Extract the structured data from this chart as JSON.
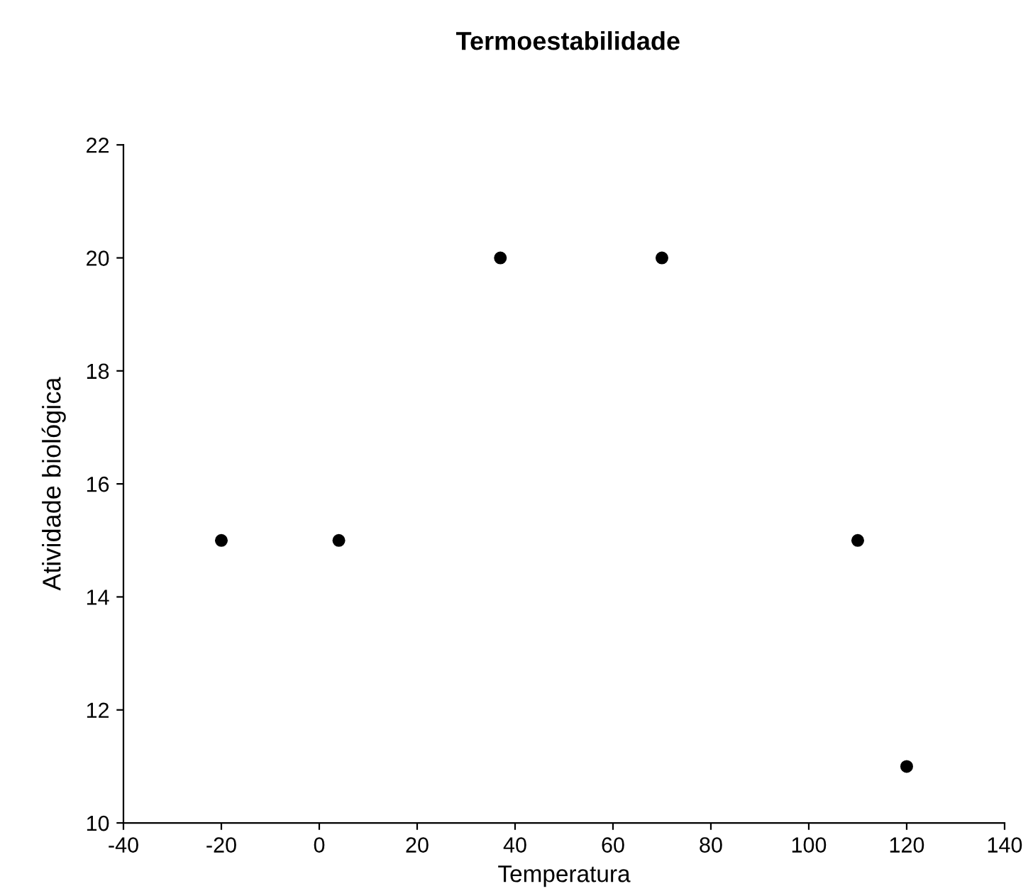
{
  "chart_data": {
    "type": "scatter",
    "title": "Termoestabilidade",
    "xlabel": "Temperatura",
    "ylabel": "Atividade biológica",
    "x": [
      -20,
      4,
      37,
      70,
      110,
      120
    ],
    "series": [
      {
        "color": "#000000",
        "values": [
          15,
          15,
          20,
          20,
          15,
          11
        ]
      }
    ],
    "xlim": [
      -40,
      140
    ],
    "xticks": [
      -40,
      -20,
      0,
      20,
      40,
      60,
      80,
      100,
      120,
      140
    ],
    "ylim": [
      10,
      22
    ],
    "yticks": [
      10,
      12,
      14,
      16,
      18,
      20,
      22
    ],
    "grid": false,
    "legend": false,
    "marker": "circle"
  }
}
